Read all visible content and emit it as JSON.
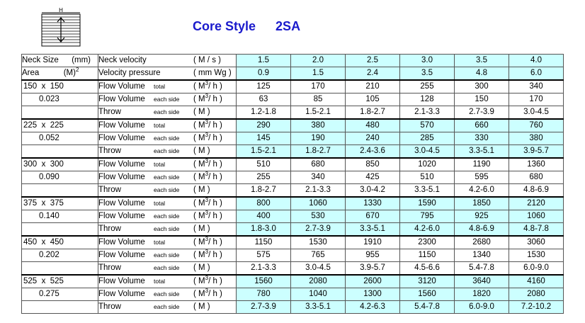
{
  "header": {
    "diagram_label": "H",
    "title_main": "Core Style",
    "title_code": "2SA"
  },
  "table": {
    "neck_label": "Neck Size",
    "neck_unit": "(mm)",
    "area_label": "Area",
    "area_unit": "(M)",
    "area_unit_sup": "2",
    "neck_velocity_label": "Neck velocity",
    "neck_velocity_unit": "( M / s )",
    "velocity_pressure_label": "Velocity pressure",
    "velocity_pressure_unit": "( mm Wg )",
    "velocities": [
      "1.5",
      "2.0",
      "2.5",
      "3.0",
      "3.5",
      "4.0"
    ],
    "pressures": [
      "0.9",
      "1.5",
      "2.4",
      "3.5",
      "4.8",
      "6.0"
    ],
    "flow_label": "Flow Volume",
    "throw_label": "Throw",
    "total_label": "total",
    "each_side_label": "each side",
    "flow_unit_pre": "( M",
    "flow_unit_sup": "3",
    "flow_unit_post": "/ h )",
    "throw_unit": "( M )",
    "sizes": [
      {
        "size": "150  x  150",
        "area": "0.023",
        "total": [
          "125",
          "170",
          "210",
          "255",
          "300",
          "340"
        ],
        "each": [
          "63",
          "85",
          "105",
          "128",
          "150",
          "170"
        ],
        "throw": [
          "1.2-1.8",
          "1.5-2.1",
          "1.8-2.7",
          "2.1-3.3",
          "2.7-3.9",
          "3.0-4.5"
        ]
      },
      {
        "size": "225  x  225",
        "area": "0.052",
        "total": [
          "290",
          "380",
          "480",
          "570",
          "660",
          "760"
        ],
        "each": [
          "145",
          "190",
          "240",
          "285",
          "330",
          "380"
        ],
        "throw": [
          "1.5-2.1",
          "1.8-2.7",
          "2.4-3.6",
          "3.0-4.5",
          "3.3-5.1",
          "3.9-5.7"
        ]
      },
      {
        "size": "300  x  300",
        "area": "0.090",
        "total": [
          "510",
          "680",
          "850",
          "1020",
          "1190",
          "1360"
        ],
        "each": [
          "255",
          "340",
          "425",
          "510",
          "595",
          "680"
        ],
        "throw": [
          "1.8-2.7",
          "2.1-3.3",
          "3.0-4.2",
          "3.3-5.1",
          "4.2-6.0",
          "4.8-6.9"
        ]
      },
      {
        "size": "375  x  375",
        "area": "0.140",
        "total": [
          "800",
          "1060",
          "1330",
          "1590",
          "1850",
          "2120"
        ],
        "each": [
          "400",
          "530",
          "670",
          "795",
          "925",
          "1060"
        ],
        "throw": [
          "1.8-3.0",
          "2.7-3.9",
          "3.3-5.1",
          "4.2-6.0",
          "4.8-6.9",
          "4.8-7.8"
        ]
      },
      {
        "size": "450  x  450",
        "area": "0.202",
        "total": [
          "1150",
          "1530",
          "1910",
          "2300",
          "2680",
          "3060"
        ],
        "each": [
          "575",
          "765",
          "955",
          "1150",
          "1340",
          "1530"
        ],
        "throw": [
          "2.1-3.3",
          "3.0-4.5",
          "3.9-5.7",
          "4.5-6.6",
          "5.4-7.8",
          "6.0-9.0"
        ]
      },
      {
        "size": "525  x  525",
        "area": "0.275",
        "total": [
          "1560",
          "2080",
          "2600",
          "3120",
          "3640",
          "4160"
        ],
        "each": [
          "780",
          "1040",
          "1300",
          "1560",
          "1820",
          "2080"
        ],
        "throw": [
          "2.7-3.9",
          "3.3-5.1",
          "4.2-6.3",
          "5.4-7.8",
          "6.0-9.0",
          "7.2-10.2"
        ]
      }
    ]
  }
}
